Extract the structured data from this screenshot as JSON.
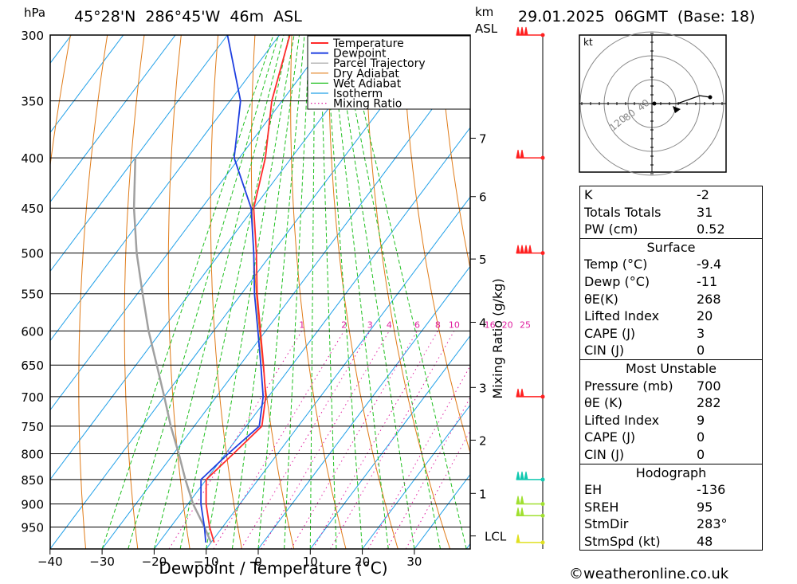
{
  "header": {
    "hpa_label": "hPa",
    "location": "45°28'N  286°45'W  46m  ASL",
    "km_label": "km",
    "asl_label": "ASL",
    "datetime": "29.01.2025  06GMT  (Base: 18)"
  },
  "legend": [
    "Temperature",
    "Dewpoint",
    "Parcel Trajectory",
    "Dry Adiabat",
    "Wet Adiabat",
    "Isotherm",
    "Mixing Ratio"
  ],
  "colors": {
    "temperature": "#ff2a2a",
    "dewpoint": "#1f3fe0",
    "parcel": "#a0a0a0",
    "dry_adiabat": "#e07b18",
    "wet_adiabat": "#20c020",
    "isotherm": "#20a0e8",
    "mixing_ratio": "#e020a0",
    "wind_red": "#ff2020",
    "wind_cyan": "#10c8b0",
    "wind_lime": "#a0e030",
    "wind_yellow": "#e0e020"
  },
  "chart_data": {
    "type": "skew-t",
    "pressure_levels": [
      300,
      350,
      400,
      450,
      500,
      550,
      600,
      650,
      700,
      750,
      800,
      850,
      900,
      950
    ],
    "temp_ticks": [
      -40,
      -30,
      -20,
      -10,
      0,
      10,
      20,
      30
    ],
    "xlabel": "Dewpoint / Temperature (°C)",
    "ylabel_right": "Mixing Ratio (g/kg)",
    "height_km_ticks": [
      {
        "label": "7",
        "p": 382
      },
      {
        "label": "6",
        "p": 438
      },
      {
        "label": "5",
        "p": 507
      },
      {
        "label": "4",
        "p": 588
      },
      {
        "label": "3",
        "p": 685
      },
      {
        "label": "2",
        "p": 775
      },
      {
        "label": "1",
        "p": 878
      },
      {
        "label": "LCL",
        "p": 970
      }
    ],
    "mixing_ratio_labels": [
      "1",
      "2",
      "3",
      "4",
      "6",
      "8",
      "10",
      "16",
      "20",
      "25"
    ],
    "mixing_ratio_values": [
      1,
      2,
      3,
      4,
      6,
      8,
      10,
      16,
      20,
      25
    ],
    "temperature": {
      "p": [
        985,
        950,
        900,
        850,
        800,
        750,
        700,
        650,
        600,
        550,
        500,
        450,
        400,
        350,
        300
      ],
      "t": [
        -9.4,
        -12.5,
        -16.5,
        -20,
        -18.5,
        -17,
        -20.5,
        -25.5,
        -31,
        -37,
        -43,
        -50,
        -55,
        -62,
        -68
      ]
    },
    "dewpoint": {
      "p": [
        985,
        950,
        900,
        850,
        800,
        750,
        700,
        650,
        600,
        550,
        500,
        450,
        400,
        350,
        300
      ],
      "td": [
        -11,
        -13.5,
        -17.5,
        -21,
        -19.5,
        -17.5,
        -21,
        -26,
        -31.5,
        -37.5,
        -43.5,
        -50.5,
        -61,
        -68,
        -80
      ]
    },
    "parcel": {
      "p": [
        985,
        950,
        900,
        850,
        800,
        750,
        700,
        650,
        600,
        550,
        500,
        450,
        400
      ],
      "t": [
        -10,
        -13.5,
        -19,
        -24,
        -29,
        -34.5,
        -40,
        -46,
        -52.5,
        -59,
        -66,
        -73,
        -80
      ]
    },
    "wind_barbs": [
      {
        "p": 300,
        "flags": 3,
        "color": "wind_red"
      },
      {
        "p": 400,
        "flags": 2,
        "color": "wind_red"
      },
      {
        "p": 500,
        "flags": 4,
        "color": "wind_red"
      },
      {
        "p": 700,
        "flags": 2,
        "color": "wind_red"
      },
      {
        "p": 850,
        "flags": 3,
        "color": "wind_cyan"
      },
      {
        "p": 900,
        "flags": 2,
        "color": "wind_lime"
      },
      {
        "p": 925,
        "flags": 2,
        "color": "wind_lime"
      },
      {
        "p": 985,
        "flags": 1,
        "color": "wind_yellow"
      }
    ],
    "hodograph": {
      "unit_label": "kt",
      "ring_labels": [
        "40",
        "80",
        "120"
      ]
    }
  },
  "indices": {
    "k_label": "K",
    "k": "-2",
    "tt_label": "Totals Totals",
    "tt": "31",
    "pw_label": "PW (cm)",
    "pw": "0.52"
  },
  "surface": {
    "title": "Surface",
    "rows": [
      {
        "label": "Temp (°C)",
        "value": "-9.4"
      },
      {
        "label": "Dewp (°C)",
        "value": "-11"
      },
      {
        "label": "θE(K)",
        "value": "268"
      },
      {
        "label": "Lifted Index",
        "value": "20"
      },
      {
        "label": "CAPE (J)",
        "value": "3"
      },
      {
        "label": "CIN (J)",
        "value": "0"
      }
    ]
  },
  "most_unstable": {
    "title": "Most Unstable",
    "rows": [
      {
        "label": "Pressure (mb)",
        "value": "700"
      },
      {
        "label": "θE (K)",
        "value": "282"
      },
      {
        "label": "Lifted Index",
        "value": "9"
      },
      {
        "label": "CAPE (J)",
        "value": "0"
      },
      {
        "label": "CIN (J)",
        "value": "0"
      }
    ]
  },
  "hodograph_stats": {
    "title": "Hodograph",
    "rows": [
      {
        "label": "EH",
        "value": "-136"
      },
      {
        "label": "SREH",
        "value": "95"
      },
      {
        "label": "StmDir",
        "value": "283°"
      },
      {
        "label": "StmSpd (kt)",
        "value": "48"
      }
    ]
  },
  "credit": "©weatheronline.co.uk"
}
